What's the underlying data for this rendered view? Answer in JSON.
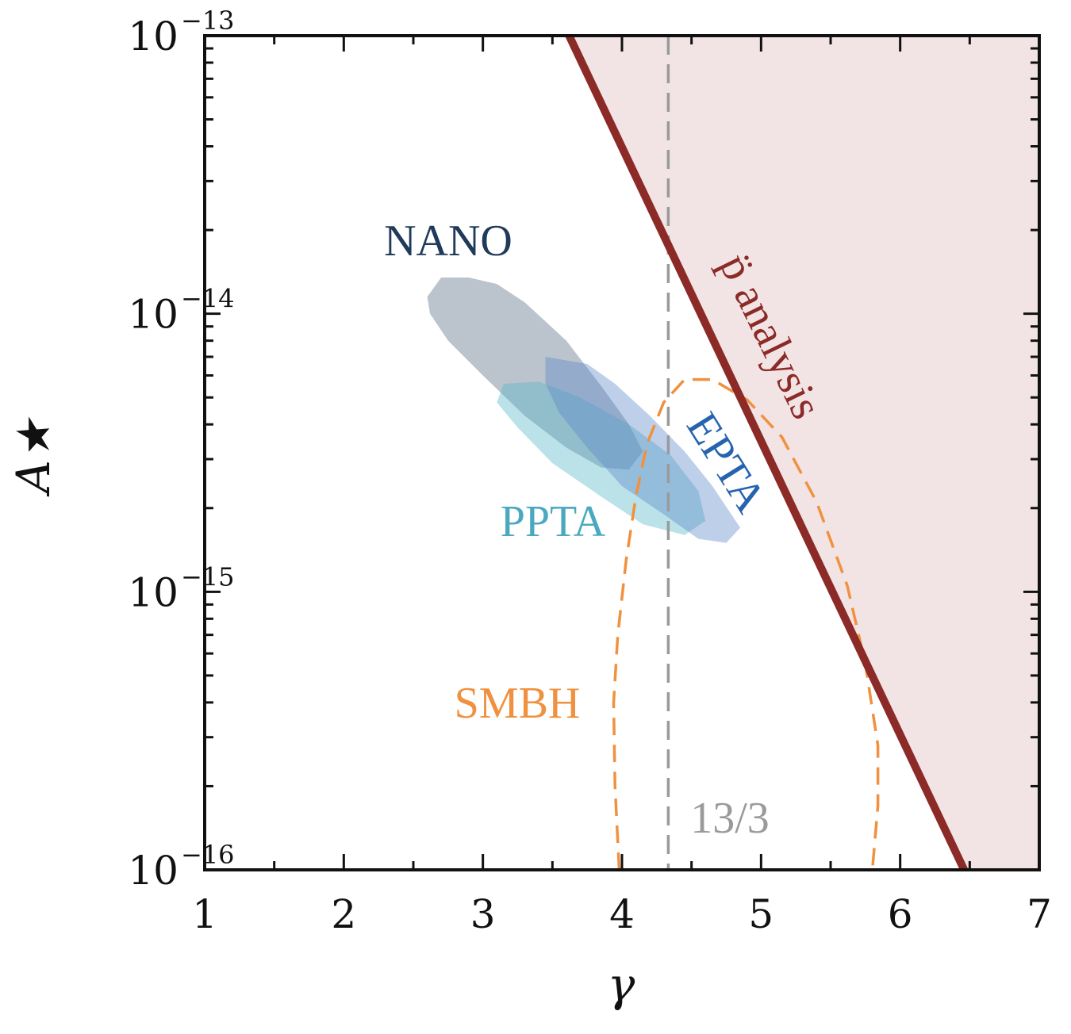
{
  "chart_data": {
    "type": "area",
    "xlabel": "γ",
    "ylabel": "A★",
    "xlim": [
      1,
      7
    ],
    "ylim": [
      1e-16,
      1e-13
    ],
    "yscale": "log",
    "xticks": [
      1,
      2,
      3,
      4,
      5,
      6,
      7
    ],
    "yticks": [
      {
        "value": 1e-13,
        "mantissa": "10",
        "exp": "−13"
      },
      {
        "value": 1e-14,
        "mantissa": "10",
        "exp": "−14"
      },
      {
        "value": 1e-15,
        "mantissa": "10",
        "exp": "−15"
      },
      {
        "value": 1e-16,
        "mantissa": "10",
        "exp": "−16"
      }
    ],
    "bound": {
      "label": "p̈ analysis",
      "color": "#8b2a27",
      "fill": "#f2e4e4",
      "points": [
        [
          3.62,
          1e-13
        ],
        [
          6.46,
          1e-16
        ]
      ]
    },
    "reference_line": {
      "label": "13/3",
      "x": 4.333,
      "color": "#9a9a9a"
    },
    "regions": [
      {
        "name": "NANO",
        "color": "#3b5670",
        "label_color": "#1f3a5a",
        "opacity": 0.35,
        "polygon": [
          [
            2.6,
            1.15e-14
          ],
          [
            2.7,
            1.35e-14
          ],
          [
            2.9,
            1.35e-14
          ],
          [
            3.1,
            1.28e-14
          ],
          [
            3.3,
            1.1e-14
          ],
          [
            3.6,
            8e-15
          ],
          [
            3.85,
            5.5e-15
          ],
          [
            4.05,
            4e-15
          ],
          [
            4.15,
            3.2e-15
          ],
          [
            4.05,
            2.75e-15
          ],
          [
            3.85,
            2.8e-15
          ],
          [
            3.6,
            3.3e-15
          ],
          [
            3.3,
            4.3e-15
          ],
          [
            3.0,
            6e-15
          ],
          [
            2.75,
            8e-15
          ],
          [
            2.62,
            1e-14
          ]
        ]
      },
      {
        "name": "PPTA",
        "color": "#56b5c9",
        "label_color": "#4ba9bf",
        "opacity": 0.4,
        "polygon": [
          [
            3.15,
            5.6e-15
          ],
          [
            3.4,
            5.7e-15
          ],
          [
            3.7,
            5e-15
          ],
          [
            4.05,
            4e-15
          ],
          [
            4.35,
            3.1e-15
          ],
          [
            4.55,
            2.3e-15
          ],
          [
            4.6,
            1.8e-15
          ],
          [
            4.45,
            1.6e-15
          ],
          [
            4.15,
            1.75e-15
          ],
          [
            3.85,
            2.2e-15
          ],
          [
            3.5,
            2.9e-15
          ],
          [
            3.25,
            3.9e-15
          ],
          [
            3.1,
            4.8e-15
          ]
        ]
      },
      {
        "name": "EPTA",
        "color": "#5a86c8",
        "label_color": "#2563b0",
        "opacity": 0.4,
        "polygon": [
          [
            3.45,
            7e-15
          ],
          [
            3.75,
            6.6e-15
          ],
          [
            3.95,
            5.6e-15
          ],
          [
            4.2,
            4.3e-15
          ],
          [
            4.45,
            3.2e-15
          ],
          [
            4.65,
            2.4e-15
          ],
          [
            4.85,
            1.7e-15
          ],
          [
            4.75,
            1.5e-15
          ],
          [
            4.55,
            1.55e-15
          ],
          [
            4.3,
            1.9e-15
          ],
          [
            4.0,
            2.4e-15
          ],
          [
            3.75,
            3.3e-15
          ],
          [
            3.55,
            4.4e-15
          ],
          [
            3.45,
            5.6e-15
          ]
        ]
      },
      {
        "name": "SMBH",
        "color": "#f0913f",
        "label_color": "#f0913f",
        "style": "dashed",
        "polyline": [
          [
            3.98,
            1e-16
          ],
          [
            3.95,
            2e-16
          ],
          [
            3.94,
            4e-16
          ],
          [
            3.97,
            7e-16
          ],
          [
            4.03,
            1.3e-15
          ],
          [
            4.1,
            2.2e-15
          ],
          [
            4.18,
            3.4e-15
          ],
          [
            4.3,
            4.8e-15
          ],
          [
            4.45,
            5.8e-15
          ],
          [
            4.65,
            5.8e-15
          ],
          [
            4.9,
            4.9e-15
          ],
          [
            5.15,
            3.6e-15
          ],
          [
            5.4,
            2.1e-15
          ],
          [
            5.62,
            1.05e-15
          ],
          [
            5.75,
            5.5e-16
          ],
          [
            5.84,
            2.8e-16
          ],
          [
            5.84,
            1.7e-16
          ],
          [
            5.8,
            1e-16
          ]
        ]
      }
    ],
    "annotations": [
      "NANO",
      "PPTA",
      "EPTA",
      "SMBH",
      "p̈ analysis",
      "13/3"
    ]
  }
}
